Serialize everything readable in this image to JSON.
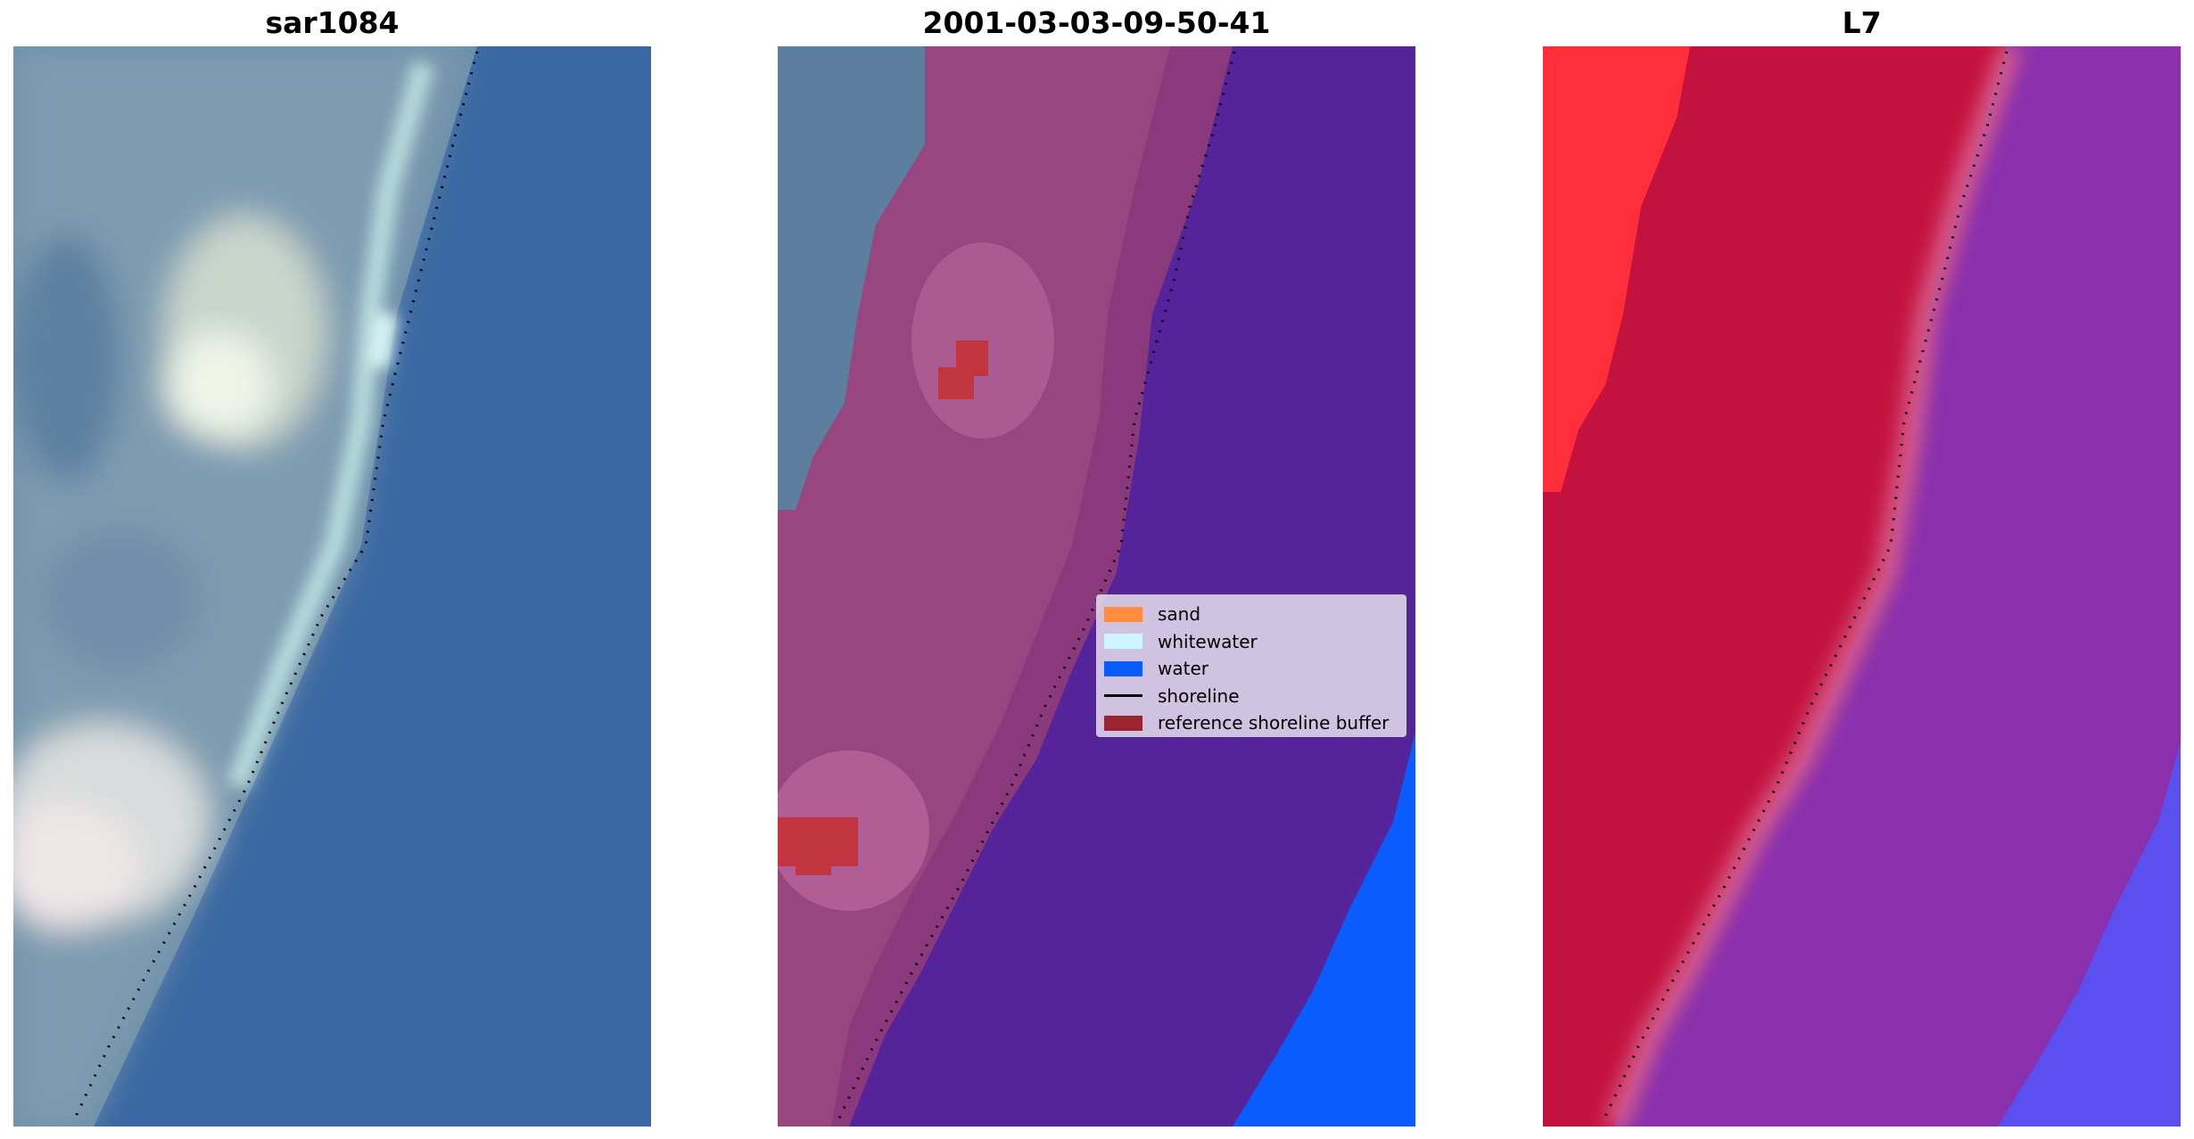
{
  "panels": [
    {
      "title": "sar1084",
      "icon": "satellite-image"
    },
    {
      "title": "2001-03-03-09-50-41",
      "icon": "classified-image"
    },
    {
      "title": "L7",
      "icon": "mndwi-image"
    }
  ],
  "legend": {
    "items": [
      {
        "label": "sand",
        "color": "#ff8c3f",
        "kind": "patch"
      },
      {
        "label": "whitewater",
        "color": "#ccf5ff",
        "kind": "patch"
      },
      {
        "label": "water",
        "color": "#0a5cff",
        "kind": "patch"
      },
      {
        "label": "shoreline",
        "color": "#000000",
        "kind": "line"
      },
      {
        "label": "reference shoreline buffer",
        "color": "#9a2530",
        "kind": "patch"
      }
    ]
  },
  "colors": {
    "ocean": "#3d6aa3",
    "water_class": "#55249a",
    "red_land": "#c4123e",
    "purple_sea": "#8a30ad"
  }
}
